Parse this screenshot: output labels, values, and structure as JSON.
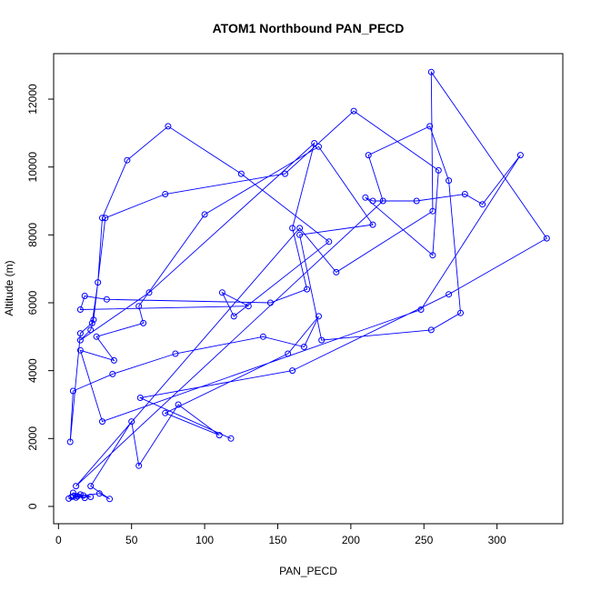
{
  "chart_data": {
    "type": "line",
    "title": "ATOM1 Northbound PAN_PECD",
    "xlabel": "PAN_PECD",
    "ylabel": "Altitude (m)",
    "xlim": [
      -3.3,
      345
    ],
    "ylim": [
      -510,
      13340
    ],
    "x_ticks": [
      0,
      50,
      100,
      150,
      200,
      250,
      300
    ],
    "y_ticks": [
      0,
      2000,
      4000,
      6000,
      8000,
      10000,
      12000
    ],
    "grid": false,
    "legend": "none",
    "series_color": "#0000ff",
    "marker": "open-circle",
    "series": [
      {
        "x": [
          9,
          7,
          13,
          12,
          22,
          15,
          10,
          18,
          10,
          17,
          28,
          35,
          22,
          50,
          55,
          82,
          110,
          73,
          157,
          178,
          168,
          140,
          80,
          37,
          10,
          8,
          15,
          23,
          27,
          30,
          47,
          75,
          125,
          185,
          120,
          112,
          130,
          15,
          18,
          33,
          145,
          170,
          160,
          175,
          62,
          15,
          22,
          24,
          32,
          73,
          155,
          202,
          260,
          256,
          210,
          215,
          245,
          278,
          290,
          316,
          248,
          30,
          15,
          38,
          26,
          58,
          55,
          100,
          178,
          215,
          165,
          180,
          255,
          275,
          267,
          254,
          212,
          222,
          12,
          165,
          190,
          256,
          255,
          334,
          267,
          160,
          56,
          118
        ],
        "y": [
          280,
          230,
          300,
          260,
          280,
          350,
          400,
          250,
          300,
          320,
          380,
          220,
          600,
          2500,
          1200,
          3000,
          2100,
          2750,
          4500,
          5600,
          4700,
          5000,
          4500,
          3900,
          3400,
          1900,
          5100,
          5400,
          6600,
          8500,
          10200,
          11200,
          9800,
          7800,
          5600,
          6300,
          5900,
          5800,
          6200,
          6100,
          6000,
          6400,
          8200,
          10700,
          6300,
          4900,
          5200,
          5500,
          8500,
          9200,
          9800,
          11650,
          9900,
          7400,
          9100,
          9000,
          9000,
          9200,
          8900,
          10350,
          5800,
          2500,
          4600,
          4300,
          5000,
          5400,
          5900,
          8600,
          10600,
          8300,
          8000,
          4900,
          5200,
          5700,
          9600,
          11200,
          10350,
          9000,
          600,
          8200,
          6900,
          8700,
          12800,
          7900,
          6250,
          4000,
          3200,
          2000
        ]
      }
    ]
  }
}
